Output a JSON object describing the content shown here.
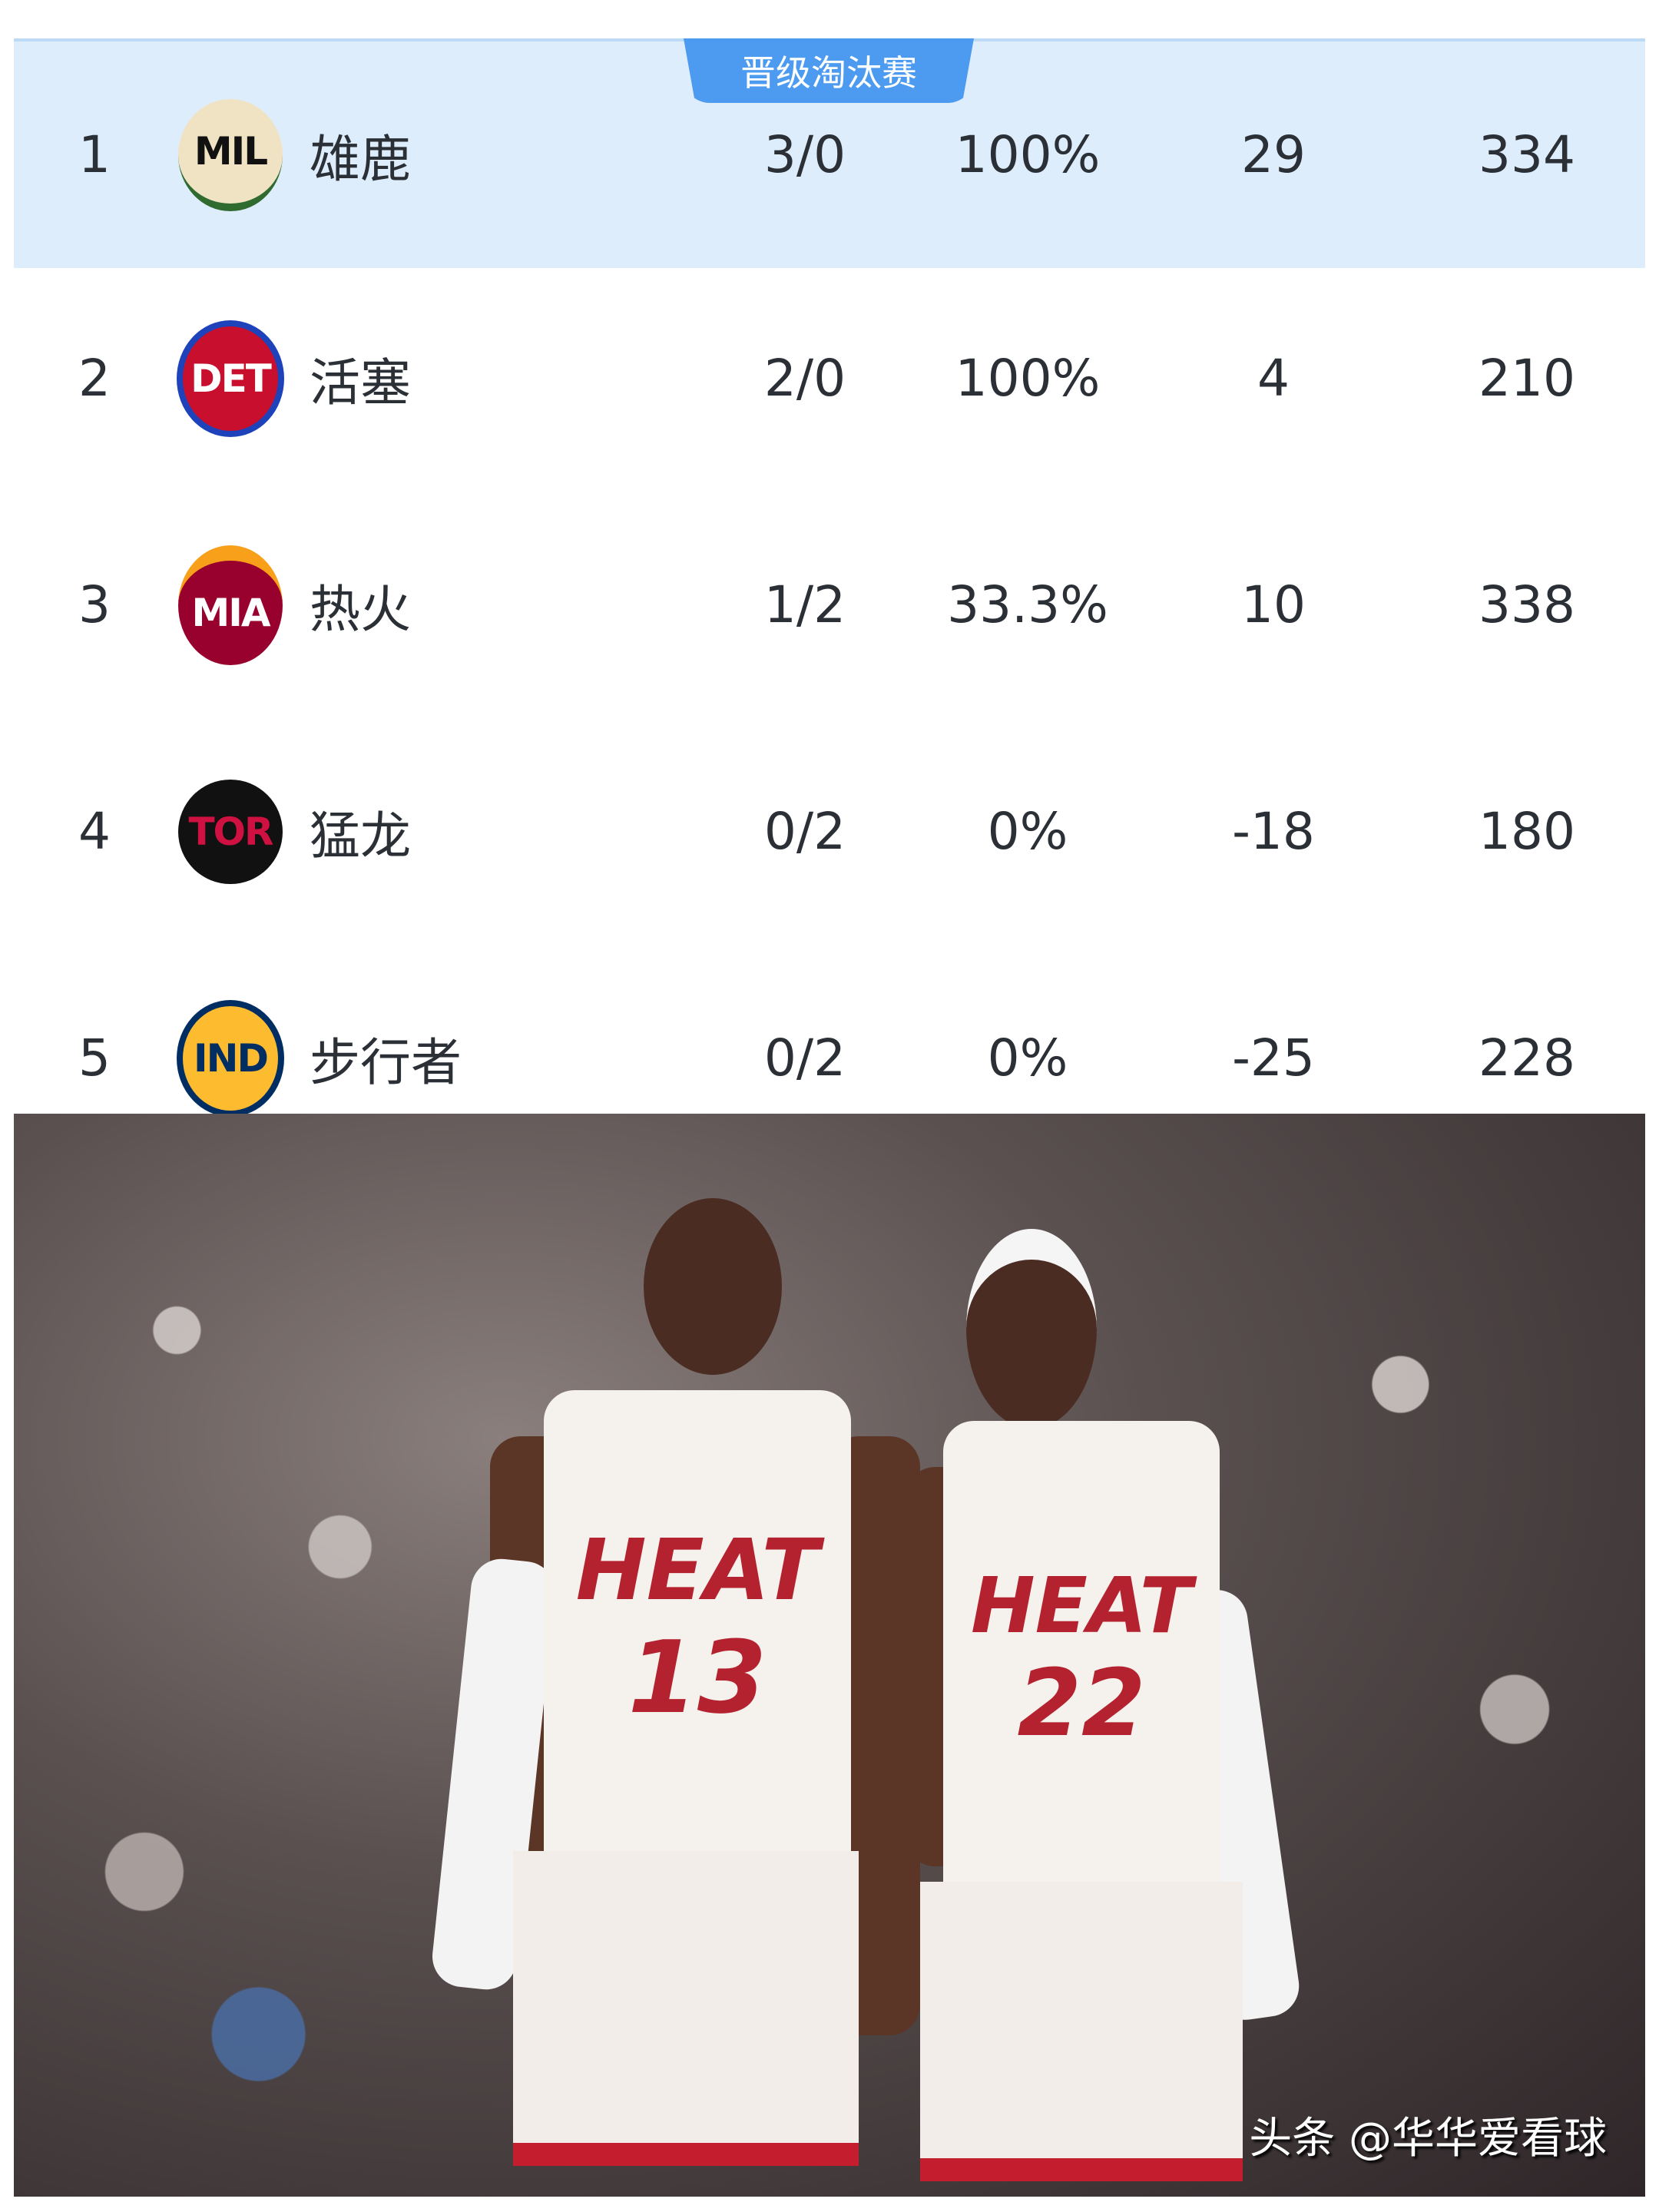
{
  "badge": "晋级淘汰赛",
  "colors": {
    "highlight": "#deedfc",
    "badge": "#4c9bf0",
    "text": "#2b2f36"
  },
  "rows": [
    {
      "rank": "1",
      "logo": "MIL",
      "team": "雄鹿",
      "record": "3/0",
      "pct": "100%",
      "diff": "29",
      "points": "334",
      "highlight": true
    },
    {
      "rank": "2",
      "logo": "DET",
      "team": "活塞",
      "record": "2/0",
      "pct": "100%",
      "diff": "4",
      "points": "210"
    },
    {
      "rank": "3",
      "logo": "MIA",
      "team": "热火",
      "record": "1/2",
      "pct": "33.3%",
      "diff": "10",
      "points": "338"
    },
    {
      "rank": "4",
      "logo": "TOR",
      "team": "猛龙",
      "record": "0/2",
      "pct": "0%",
      "diff": "-18",
      "points": "180"
    },
    {
      "rank": "5",
      "logo": "IND",
      "team": "步行者",
      "record": "0/2",
      "pct": "0%",
      "diff": "-25",
      "points": "228"
    }
  ],
  "photo": {
    "jersey1_text": "HEAT",
    "jersey1_number": "13",
    "jersey2_text": "HEAT",
    "jersey2_number": "22",
    "watermark": "头条 @华华爱看球"
  }
}
